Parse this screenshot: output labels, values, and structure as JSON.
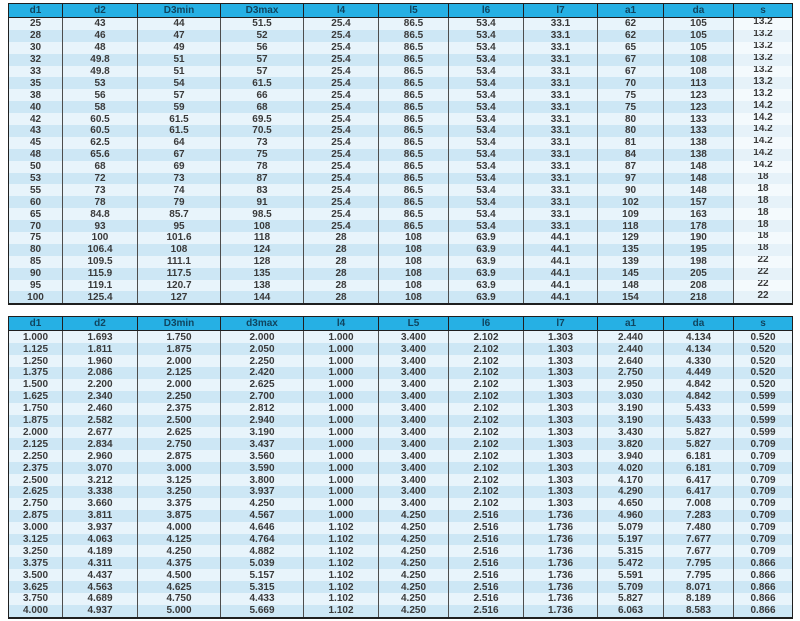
{
  "colors": {
    "header_bg": "#26b0e4",
    "header_text": "#10455f",
    "row_light": "#e8f4fb",
    "row_dark": "#cde7f5",
    "s_col_light": "#f4fafd",
    "s_col_dark": "#e6f2f9",
    "border_dark": "#1f1f1f",
    "divider": "#4d4d4d",
    "cell_text": "#3a3a3a"
  },
  "tables": [
    {
      "id": "table-metric",
      "headers": [
        "d1",
        "d2",
        "D3min",
        "D3max",
        "l4",
        "l5",
        "l6",
        "l7",
        "a1",
        "da",
        "s"
      ],
      "s_column_raised": true,
      "rows": [
        [
          "25",
          "43",
          "44",
          "51.5",
          "25.4",
          "86.5",
          "53.4",
          "33.1",
          "62",
          "105",
          "13.2"
        ],
        [
          "28",
          "46",
          "47",
          "52",
          "25.4",
          "86.5",
          "53.4",
          "33.1",
          "62",
          "105",
          "13.2"
        ],
        [
          "30",
          "48",
          "49",
          "56",
          "25.4",
          "86.5",
          "53.4",
          "33.1",
          "65",
          "105",
          "13.2"
        ],
        [
          "32",
          "49.8",
          "51",
          "57",
          "25.4",
          "86.5",
          "53.4",
          "33.1",
          "67",
          "108",
          "13.2"
        ],
        [
          "33",
          "49.8",
          "51",
          "57",
          "25.4",
          "86.5",
          "53.4",
          "33.1",
          "67",
          "108",
          "13.2"
        ],
        [
          "35",
          "53",
          "54",
          "61.5",
          "25.4",
          "86.5",
          "53.4",
          "33.1",
          "70",
          "113",
          "13.2"
        ],
        [
          "38",
          "56",
          "57",
          "66",
          "25.4",
          "86.5",
          "53.4",
          "33.1",
          "75",
          "123",
          "13.2"
        ],
        [
          "40",
          "58",
          "59",
          "68",
          "25.4",
          "86.5",
          "53.4",
          "33.1",
          "75",
          "123",
          "14.2"
        ],
        [
          "42",
          "60.5",
          "61.5",
          "69.5",
          "25.4",
          "86.5",
          "53.4",
          "33.1",
          "80",
          "133",
          "14.2"
        ],
        [
          "43",
          "60.5",
          "61.5",
          "70.5",
          "25.4",
          "86.5",
          "53.4",
          "33.1",
          "80",
          "133",
          "14.2"
        ],
        [
          "45",
          "62.5",
          "64",
          "73",
          "25.4",
          "86.5",
          "53.4",
          "33.1",
          "81",
          "138",
          "14.2"
        ],
        [
          "48",
          "65.6",
          "67",
          "75",
          "25.4",
          "86.5",
          "53.4",
          "33.1",
          "84",
          "138",
          "14.2"
        ],
        [
          "50",
          "68",
          "69",
          "78",
          "25.4",
          "86.5",
          "53.4",
          "33.1",
          "87",
          "148",
          "14.2"
        ],
        [
          "53",
          "72",
          "73",
          "87",
          "25.4",
          "86.5",
          "53.4",
          "33.1",
          "97",
          "148",
          "18"
        ],
        [
          "55",
          "73",
          "74",
          "83",
          "25.4",
          "86.5",
          "53.4",
          "33.1",
          "90",
          "148",
          "18"
        ],
        [
          "60",
          "78",
          "79",
          "91",
          "25.4",
          "86.5",
          "53.4",
          "33.1",
          "102",
          "157",
          "18"
        ],
        [
          "65",
          "84.8",
          "85.7",
          "98.5",
          "25.4",
          "86.5",
          "53.4",
          "33.1",
          "109",
          "163",
          "18"
        ],
        [
          "70",
          "93",
          "95",
          "108",
          "25.4",
          "86.5",
          "53.4",
          "33.1",
          "118",
          "178",
          "18"
        ],
        [
          "75",
          "100",
          "101.6",
          "118",
          "28",
          "108",
          "63.9",
          "44.1",
          "129",
          "190",
          "18"
        ],
        [
          "80",
          "106.4",
          "108",
          "124",
          "28",
          "108",
          "63.9",
          "44.1",
          "135",
          "195",
          "18"
        ],
        [
          "85",
          "109.5",
          "111.1",
          "128",
          "28",
          "108",
          "63.9",
          "44.1",
          "139",
          "198",
          "22"
        ],
        [
          "90",
          "115.9",
          "117.5",
          "135",
          "28",
          "108",
          "63.9",
          "44.1",
          "145",
          "205",
          "22"
        ],
        [
          "95",
          "119.1",
          "120.7",
          "138",
          "28",
          "108",
          "63.9",
          "44.1",
          "148",
          "208",
          "22"
        ],
        [
          "100",
          "125.4",
          "127",
          "144",
          "28",
          "108",
          "63.9",
          "44.1",
          "154",
          "218",
          "22"
        ]
      ]
    },
    {
      "id": "table-inch",
      "headers": [
        "d1",
        "d2",
        "D3min",
        "d3max",
        "l4",
        "L5",
        "l6",
        "l7",
        "a1",
        "da",
        "s"
      ],
      "s_column_raised": false,
      "rows": [
        [
          "1.000",
          "1.693",
          "1.750",
          "2.000",
          "1.000",
          "3.400",
          "2.102",
          "1.303",
          "2.440",
          "4.134",
          "0.520"
        ],
        [
          "1.125",
          "1.811",
          "1.875",
          "2.050",
          "1.000",
          "3.400",
          "2.102",
          "1.303",
          "2.440",
          "4.134",
          "0.520"
        ],
        [
          "1.250",
          "1.960",
          "2.000",
          "2.250",
          "1.000",
          "3.400",
          "2.102",
          "1.303",
          "2.640",
          "4.330",
          "0.520"
        ],
        [
          "1.375",
          "2.086",
          "2.125",
          "2.420",
          "1.000",
          "3.400",
          "2.102",
          "1.303",
          "2.750",
          "4.449",
          "0.520"
        ],
        [
          "1.500",
          "2.200",
          "2.000",
          "2.625",
          "1.000",
          "3.400",
          "2.102",
          "1.303",
          "2.950",
          "4.842",
          "0.520"
        ],
        [
          "1.625",
          "2.340",
          "2.250",
          "2.700",
          "1.000",
          "3.400",
          "2.102",
          "1.303",
          "3.030",
          "4.842",
          "0.599"
        ],
        [
          "1.750",
          "2.460",
          "2.375",
          "2.812",
          "1.000",
          "3.400",
          "2.102",
          "1.303",
          "3.190",
          "5.433",
          "0.599"
        ],
        [
          "1.875",
          "2.582",
          "2.500",
          "2.940",
          "1.000",
          "3.400",
          "2.102",
          "1.303",
          "3.190",
          "5.433",
          "0.599"
        ],
        [
          "2.000",
          "2.677",
          "2.625",
          "3.190",
          "1.000",
          "3.400",
          "2.102",
          "1.303",
          "3.430",
          "5.827",
          "0.599"
        ],
        [
          "2.125",
          "2.834",
          "2.750",
          "3.437",
          "1.000",
          "3.400",
          "2.102",
          "1.303",
          "3.820",
          "5.827",
          "0.709"
        ],
        [
          "2.250",
          "2.960",
          "2.875",
          "3.560",
          "1.000",
          "3.400",
          "2.102",
          "1.303",
          "3.940",
          "6.181",
          "0.709"
        ],
        [
          "2.375",
          "3.070",
          "3.000",
          "3.590",
          "1.000",
          "3.400",
          "2.102",
          "1.303",
          "4.020",
          "6.181",
          "0.709"
        ],
        [
          "2.500",
          "3.212",
          "3.125",
          "3.800",
          "1.000",
          "3.400",
          "2.102",
          "1.303",
          "4.170",
          "6.417",
          "0.709"
        ],
        [
          "2.625",
          "3.338",
          "3.250",
          "3.937",
          "1.000",
          "3.400",
          "2.102",
          "1.303",
          "4.290",
          "6.417",
          "0.709"
        ],
        [
          "2.750",
          "3.660",
          "3.375",
          "4.250",
          "1.000",
          "3.400",
          "2.102",
          "1.303",
          "4.650",
          "7.008",
          "0.709"
        ],
        [
          "2.875",
          "3.811",
          "3.875",
          "4.567",
          "1.000",
          "4.250",
          "2.516",
          "1.736",
          "4.960",
          "7.283",
          "0.709"
        ],
        [
          "3.000",
          "3.937",
          "4.000",
          "4.646",
          "1.102",
          "4.250",
          "2.516",
          "1.736",
          "5.079",
          "7.480",
          "0.709"
        ],
        [
          "3.125",
          "4.063",
          "4.125",
          "4.764",
          "1.102",
          "4.250",
          "2.516",
          "1.736",
          "5.197",
          "7.677",
          "0.709"
        ],
        [
          "3.250",
          "4.189",
          "4.250",
          "4.882",
          "1.102",
          "4.250",
          "2.516",
          "1.736",
          "5.315",
          "7.677",
          "0.709"
        ],
        [
          "3.375",
          "4.311",
          "4.375",
          "5.039",
          "1.102",
          "4.250",
          "2.516",
          "1.736",
          "5.472",
          "7.795",
          "0.866"
        ],
        [
          "3.500",
          "4.437",
          "4.500",
          "5.157",
          "1.102",
          "4.250",
          "2.516",
          "1.736",
          "5.591",
          "7.795",
          "0.866"
        ],
        [
          "3.625",
          "4.563",
          "4.625",
          "5.315",
          "1.102",
          "4.250",
          "2.516",
          "1.736",
          "5.709",
          "8.071",
          "0.866"
        ],
        [
          "3.750",
          "4.689",
          "4.750",
          "4.433",
          "1.102",
          "4.250",
          "2.516",
          "1.736",
          "5.827",
          "8.189",
          "0.866"
        ],
        [
          "4.000",
          "4.937",
          "5.000",
          "5.669",
          "1.102",
          "4.250",
          "2.516",
          "1.736",
          "6.063",
          "8.583",
          "0.866"
        ]
      ]
    }
  ]
}
